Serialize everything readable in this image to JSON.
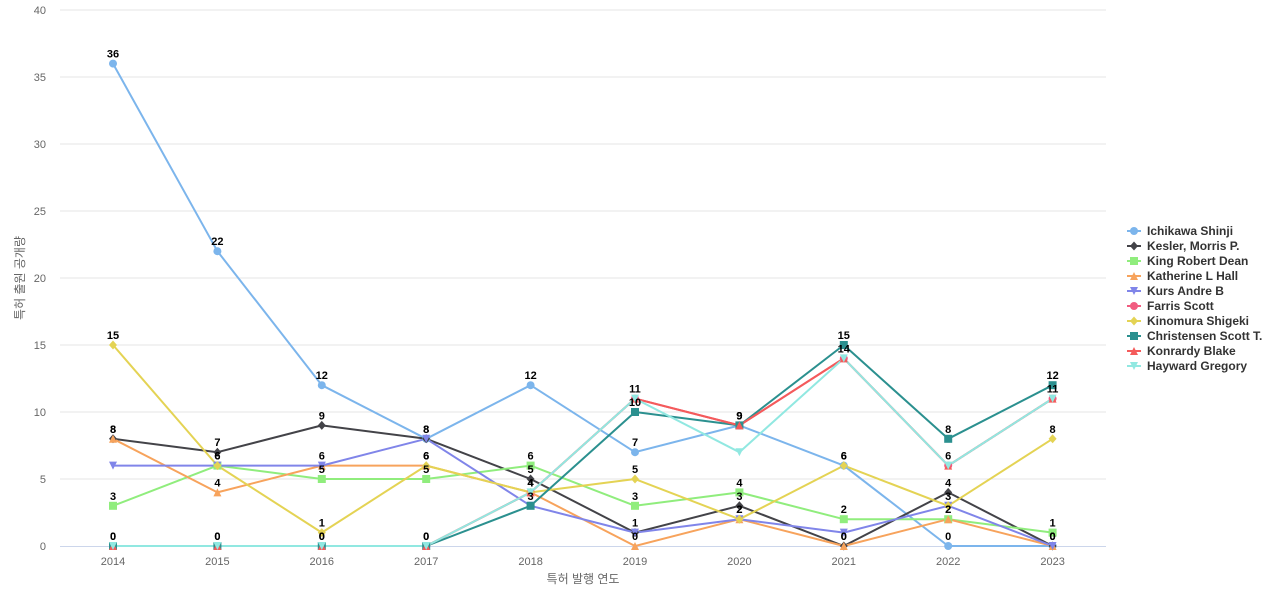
{
  "chart_data": {
    "type": "line",
    "xlabel": "특허 발행 연도",
    "ylabel": "특허 출원 공개량",
    "ylim": [
      0,
      40
    ],
    "y_ticks": [
      0,
      5,
      10,
      15,
      20,
      25,
      30,
      35,
      40
    ],
    "grid": true,
    "legend_position": "right",
    "x": [
      "2014",
      "2015",
      "2016",
      "2017",
      "2018",
      "2019",
      "2020",
      "2021",
      "2022",
      "2023"
    ],
    "series": [
      {
        "name": "Ichikawa Shinji",
        "color": "#7cb5ec",
        "marker": "circle",
        "values": [
          36,
          22,
          12,
          8,
          12,
          7,
          9,
          6,
          0,
          0
        ]
      },
      {
        "name": "Kesler, Morris P.",
        "color": "#434348",
        "marker": "diamond",
        "values": [
          8,
          7,
          9,
          8,
          5,
          1,
          3,
          0,
          4,
          0
        ]
      },
      {
        "name": "King Robert Dean",
        "color": "#90ed7d",
        "marker": "square",
        "values": [
          3,
          6,
          5,
          5,
          6,
          3,
          4,
          2,
          2,
          1
        ]
      },
      {
        "name": "Katherine L Hall",
        "color": "#f7a35c",
        "marker": "triangle",
        "values": [
          8,
          4,
          6,
          6,
          4,
          0,
          2,
          0,
          2,
          0
        ]
      },
      {
        "name": "Kurs Andre B",
        "color": "#8085e9",
        "marker": "triangle-down",
        "values": [
          6,
          6,
          6,
          8,
          3,
          1,
          2,
          1,
          3,
          0
        ]
      },
      {
        "name": "Farris Scott",
        "color": "#f15c80",
        "marker": "circle",
        "values": [
          0,
          0,
          0,
          0,
          4,
          11,
          9,
          14,
          6,
          11
        ]
      },
      {
        "name": "Kinomura Shigeki",
        "color": "#e4d354",
        "marker": "diamond",
        "values": [
          15,
          6,
          1,
          6,
          4,
          5,
          2,
          6,
          3,
          8
        ]
      },
      {
        "name": "Christensen Scott T.",
        "color": "#2b908f",
        "marker": "square",
        "values": [
          0,
          0,
          0,
          0,
          3,
          10,
          9,
          15,
          8,
          12
        ]
      },
      {
        "name": "Konrardy Blake",
        "color": "#f45b5b",
        "marker": "triangle",
        "values": [
          0,
          0,
          0,
          0,
          4,
          11,
          9,
          14,
          6,
          11
        ]
      },
      {
        "name": "Hayward Gregory",
        "color": "#91e8e1",
        "marker": "triangle-down",
        "values": [
          0,
          0,
          0,
          0,
          4,
          11,
          7,
          14,
          6,
          11
        ]
      }
    ],
    "label_series": [
      0,
      1,
      2,
      3,
      5,
      6,
      7
    ]
  }
}
